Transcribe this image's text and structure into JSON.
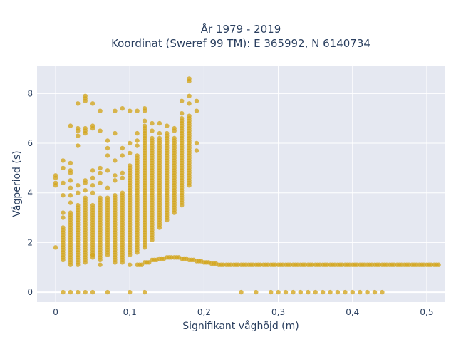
{
  "chart_data": {
    "type": "scatter",
    "title_line1": "År 1979 - 2019",
    "title_line2": "Koordinat (Sweref 99 TM): E 365992, N 6140734",
    "xlabel": "Signifikant våghöjd (m)",
    "ylabel": "Vågperiod (s)",
    "xlim": [
      -0.025,
      0.525
    ],
    "ylim": [
      -0.4,
      9.1
    ],
    "x_ticks": [
      0,
      0.1,
      0.2,
      0.3,
      0.4,
      0.5
    ],
    "x_tick_labels": [
      "0",
      "0,1",
      "0,2",
      "0,3",
      "0,4",
      "0,5"
    ],
    "y_ticks": [
      0,
      2,
      4,
      6,
      8
    ],
    "y_tick_labels": [
      "0",
      "2",
      "4",
      "6",
      "8"
    ],
    "grid": true,
    "colors": {
      "marker": "#d4a51c",
      "plot_bg": "#e5e8f1",
      "grid": "#ffffff",
      "text": "#2a3f5f"
    },
    "vertical_bands": [
      {
        "x": 0.01,
        "ymin": 1.3,
        "ymax": 2.6
      },
      {
        "x": 0.02,
        "ymin": 1.1,
        "ymax": 3.2
      },
      {
        "x": 0.03,
        "ymin": 1.1,
        "ymax": 3.5
      },
      {
        "x": 0.04,
        "ymin": 1.2,
        "ymax": 3.8
      },
      {
        "x": 0.05,
        "ymin": 1.4,
        "ymax": 3.5
      },
      {
        "x": 0.06,
        "ymin": 1.3,
        "ymax": 3.8
      },
      {
        "x": 0.07,
        "ymin": 1.5,
        "ymax": 3.8
      },
      {
        "x": 0.08,
        "ymin": 1.3,
        "ymax": 3.9
      },
      {
        "x": 0.09,
        "ymin": 1.2,
        "ymax": 4.0
      },
      {
        "x": 0.1,
        "ymin": 1.5,
        "ymax": 5.1
      },
      {
        "x": 0.11,
        "ymin": 1.6,
        "ymax": 5.5
      },
      {
        "x": 0.12,
        "ymin": 1.8,
        "ymax": 6.7
      },
      {
        "x": 0.13,
        "ymin": 2.1,
        "ymax": 6.2
      },
      {
        "x": 0.14,
        "ymin": 2.6,
        "ymax": 6.1
      },
      {
        "x": 0.15,
        "ymin": 2.9,
        "ymax": 6.3
      },
      {
        "x": 0.16,
        "ymin": 3.2,
        "ymax": 6.2
      },
      {
        "x": 0.17,
        "ymin": 3.5,
        "ymax": 7.0
      },
      {
        "x": 0.18,
        "ymin": 4.3,
        "ymax": 7.1
      }
    ],
    "low_period_band": [
      {
        "x": 0.11,
        "y": 1.1
      },
      {
        "x": 0.12,
        "y": 1.2
      },
      {
        "x": 0.13,
        "y": 1.3
      },
      {
        "x": 0.14,
        "y": 1.35
      },
      {
        "x": 0.15,
        "y": 1.4
      },
      {
        "x": 0.16,
        "y": 1.4
      },
      {
        "x": 0.17,
        "y": 1.35
      },
      {
        "x": 0.18,
        "y": 1.3
      },
      {
        "x": 0.19,
        "y": 1.25
      },
      {
        "x": 0.2,
        "y": 1.2
      },
      {
        "x": 0.21,
        "y": 1.15
      },
      {
        "x": 0.22,
        "y": 1.1
      },
      {
        "x": 0.23,
        "y": 1.1
      },
      {
        "x": 0.24,
        "y": 1.1
      },
      {
        "x": 0.25,
        "y": 1.1
      },
      {
        "x": 0.26,
        "y": 1.1
      },
      {
        "x": 0.27,
        "y": 1.1
      },
      {
        "x": 0.28,
        "y": 1.1
      },
      {
        "x": 0.29,
        "y": 1.1
      },
      {
        "x": 0.3,
        "y": 1.1
      },
      {
        "x": 0.31,
        "y": 1.1
      },
      {
        "x": 0.32,
        "y": 1.1
      },
      {
        "x": 0.33,
        "y": 1.1
      },
      {
        "x": 0.34,
        "y": 1.1
      },
      {
        "x": 0.35,
        "y": 1.1
      },
      {
        "x": 0.36,
        "y": 1.1
      },
      {
        "x": 0.37,
        "y": 1.1
      },
      {
        "x": 0.38,
        "y": 1.1
      },
      {
        "x": 0.39,
        "y": 1.1
      },
      {
        "x": 0.4,
        "y": 1.1
      },
      {
        "x": 0.41,
        "y": 1.1
      },
      {
        "x": 0.42,
        "y": 1.1
      },
      {
        "x": 0.43,
        "y": 1.1
      },
      {
        "x": 0.44,
        "y": 1.1
      },
      {
        "x": 0.45,
        "y": 1.1
      },
      {
        "x": 0.46,
        "y": 1.1
      },
      {
        "x": 0.47,
        "y": 1.1
      },
      {
        "x": 0.48,
        "y": 1.1
      },
      {
        "x": 0.49,
        "y": 1.1
      },
      {
        "x": 0.5,
        "y": 1.1
      },
      {
        "x": 0.51,
        "y": 1.1
      }
    ],
    "zero_period_points": [
      0.01,
      0.02,
      0.03,
      0.04,
      0.05,
      0.07,
      0.1,
      0.12,
      0.25,
      0.27,
      0.29,
      0.3,
      0.31,
      0.32,
      0.33,
      0.34,
      0.35,
      0.36,
      0.37,
      0.38,
      0.39,
      0.4,
      0.41,
      0.42,
      0.43,
      0.44
    ],
    "scattered_points": [
      {
        "x": 0.0,
        "y": 4.7
      },
      {
        "x": 0.0,
        "y": 4.6
      },
      {
        "x": 0.0,
        "y": 4.4
      },
      {
        "x": 0.0,
        "y": 4.3
      },
      {
        "x": 0.0,
        "y": 1.8
      },
      {
        "x": 0.01,
        "y": 5.3
      },
      {
        "x": 0.01,
        "y": 5.0
      },
      {
        "x": 0.01,
        "y": 4.4
      },
      {
        "x": 0.01,
        "y": 3.9
      },
      {
        "x": 0.01,
        "y": 3.2
      },
      {
        "x": 0.01,
        "y": 3.0
      },
      {
        "x": 0.02,
        "y": 6.7
      },
      {
        "x": 0.02,
        "y": 5.2
      },
      {
        "x": 0.02,
        "y": 4.9
      },
      {
        "x": 0.02,
        "y": 4.8
      },
      {
        "x": 0.02,
        "y": 4.5
      },
      {
        "x": 0.02,
        "y": 4.2
      },
      {
        "x": 0.02,
        "y": 3.9
      },
      {
        "x": 0.02,
        "y": 3.6
      },
      {
        "x": 0.03,
        "y": 7.6
      },
      {
        "x": 0.03,
        "y": 6.6
      },
      {
        "x": 0.03,
        "y": 6.5
      },
      {
        "x": 0.03,
        "y": 6.3
      },
      {
        "x": 0.03,
        "y": 5.9
      },
      {
        "x": 0.03,
        "y": 4.3
      },
      {
        "x": 0.03,
        "y": 4.0
      },
      {
        "x": 0.04,
        "y": 7.9
      },
      {
        "x": 0.04,
        "y": 7.8
      },
      {
        "x": 0.04,
        "y": 7.7
      },
      {
        "x": 0.04,
        "y": 6.6
      },
      {
        "x": 0.04,
        "y": 6.5
      },
      {
        "x": 0.04,
        "y": 6.4
      },
      {
        "x": 0.04,
        "y": 4.5
      },
      {
        "x": 0.04,
        "y": 4.4
      },
      {
        "x": 0.04,
        "y": 4.1
      },
      {
        "x": 0.05,
        "y": 7.6
      },
      {
        "x": 0.05,
        "y": 6.7
      },
      {
        "x": 0.05,
        "y": 6.6
      },
      {
        "x": 0.05,
        "y": 4.9
      },
      {
        "x": 0.05,
        "y": 4.6
      },
      {
        "x": 0.05,
        "y": 4.3
      },
      {
        "x": 0.05,
        "y": 4.0
      },
      {
        "x": 0.05,
        "y": 1.5
      },
      {
        "x": 0.06,
        "y": 7.3
      },
      {
        "x": 0.06,
        "y": 6.5
      },
      {
        "x": 0.06,
        "y": 5.0
      },
      {
        "x": 0.06,
        "y": 4.8
      },
      {
        "x": 0.06,
        "y": 4.4
      },
      {
        "x": 0.06,
        "y": 1.1
      },
      {
        "x": 0.07,
        "y": 6.1
      },
      {
        "x": 0.07,
        "y": 5.8
      },
      {
        "x": 0.07,
        "y": 5.5
      },
      {
        "x": 0.07,
        "y": 4.9
      },
      {
        "x": 0.07,
        "y": 4.2
      },
      {
        "x": 0.08,
        "y": 7.3
      },
      {
        "x": 0.08,
        "y": 6.4
      },
      {
        "x": 0.08,
        "y": 5.3
      },
      {
        "x": 0.08,
        "y": 4.7
      },
      {
        "x": 0.08,
        "y": 4.5
      },
      {
        "x": 0.08,
        "y": 1.2
      },
      {
        "x": 0.09,
        "y": 7.4
      },
      {
        "x": 0.09,
        "y": 5.8
      },
      {
        "x": 0.09,
        "y": 5.5
      },
      {
        "x": 0.09,
        "y": 4.8
      },
      {
        "x": 0.09,
        "y": 4.6
      },
      {
        "x": 0.1,
        "y": 7.3
      },
      {
        "x": 0.1,
        "y": 6.0
      },
      {
        "x": 0.1,
        "y": 5.6
      },
      {
        "x": 0.1,
        "y": 1.1
      },
      {
        "x": 0.11,
        "y": 7.3
      },
      {
        "x": 0.11,
        "y": 6.4
      },
      {
        "x": 0.11,
        "y": 6.1
      },
      {
        "x": 0.11,
        "y": 5.9
      },
      {
        "x": 0.12,
        "y": 7.4
      },
      {
        "x": 0.12,
        "y": 7.3
      },
      {
        "x": 0.12,
        "y": 6.9
      },
      {
        "x": 0.13,
        "y": 6.8
      },
      {
        "x": 0.13,
        "y": 6.5
      },
      {
        "x": 0.14,
        "y": 6.8
      },
      {
        "x": 0.14,
        "y": 6.4
      },
      {
        "x": 0.14,
        "y": 6.2
      },
      {
        "x": 0.15,
        "y": 6.7
      },
      {
        "x": 0.15,
        "y": 6.4
      },
      {
        "x": 0.16,
        "y": 6.6
      },
      {
        "x": 0.16,
        "y": 6.5
      },
      {
        "x": 0.17,
        "y": 7.7
      },
      {
        "x": 0.17,
        "y": 7.2
      },
      {
        "x": 0.18,
        "y": 8.6
      },
      {
        "x": 0.18,
        "y": 8.5
      },
      {
        "x": 0.18,
        "y": 7.9
      },
      {
        "x": 0.18,
        "y": 7.6
      },
      {
        "x": 0.19,
        "y": 7.7
      },
      {
        "x": 0.19,
        "y": 7.3
      },
      {
        "x": 0.19,
        "y": 6.0
      },
      {
        "x": 0.19,
        "y": 5.7
      }
    ]
  }
}
